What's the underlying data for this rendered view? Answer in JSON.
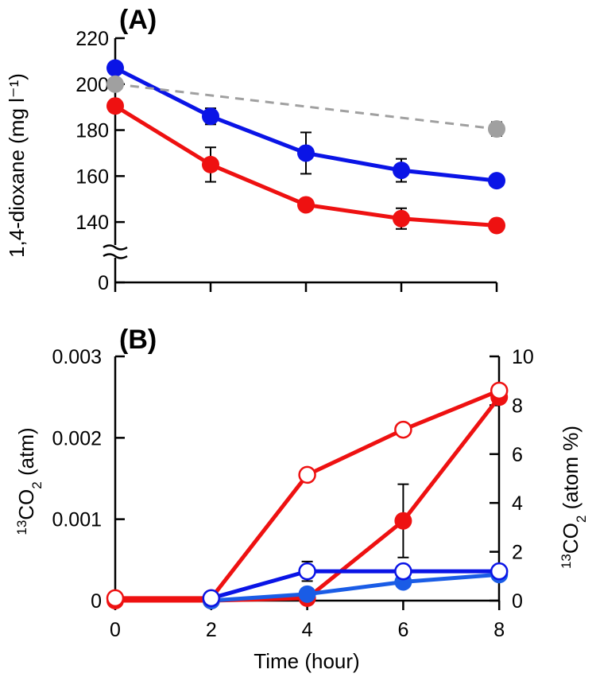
{
  "chart_data": [
    {
      "type": "line",
      "panel_label": "(A)",
      "ylabel": "1,4-dioxane (mg l⁻¹)",
      "xlabel": "",
      "x": [
        0,
        2,
        4,
        6,
        8
      ],
      "xlim": [
        0,
        8
      ],
      "ylim_broken": {
        "lower_tick": 0,
        "upper": [
          130,
          220
        ]
      },
      "yticks": [
        0,
        140,
        160,
        180,
        200,
        220
      ],
      "xticks": [
        0,
        2,
        4,
        6,
        8
      ],
      "axis_break": true,
      "series": [
        {
          "name": "blue",
          "color": "#0a14e6",
          "style": "solid",
          "marker": "filled",
          "x": [
            0,
            2,
            4,
            6,
            8
          ],
          "values": [
            207,
            186,
            170,
            162.5,
            158
          ],
          "error": [
            0,
            3.5,
            9,
            5,
            0
          ]
        },
        {
          "name": "red",
          "color": "#ee1111",
          "style": "solid",
          "marker": "filled",
          "x": [
            0,
            2,
            4,
            6,
            8
          ],
          "values": [
            190.5,
            165,
            147.5,
            141.5,
            138.5
          ],
          "error": [
            0,
            7.5,
            2.5,
            4.5,
            0
          ]
        },
        {
          "name": "gray",
          "color": "#a0a0a0",
          "style": "dashed",
          "marker": "filled",
          "x": [
            0,
            8
          ],
          "values": [
            200,
            180.5
          ],
          "error": [
            0,
            3
          ]
        }
      ]
    },
    {
      "type": "line",
      "panel_label": "(B)",
      "ylabel_left": "CO (atm)",
      "ylabel_left_sup": "13",
      "ylabel_left_sub": "2",
      "ylabel_right": "CO (atom %)",
      "ylabel_right_sup": "13",
      "ylabel_right_sub": "2",
      "xlabel": "Time (hour)",
      "x": [
        0,
        2,
        4,
        6,
        8
      ],
      "xlim": [
        0,
        8
      ],
      "ylim_left": [
        0,
        0.003
      ],
      "ylim_right": [
        0,
        10
      ],
      "yticks_left": [
        "0",
        "0.001",
        "0.002",
        "0.003"
      ],
      "yticks_right": [
        "0",
        "2",
        "4",
        "6",
        "8",
        "10"
      ],
      "xticks": [
        "0",
        "2",
        "4",
        "6",
        "8"
      ],
      "series": [
        {
          "name": "red filled (atm)",
          "axis": "left",
          "color": "#ee1111",
          "marker": "filled",
          "x": [
            0,
            2,
            4,
            6,
            8
          ],
          "values": [
            0,
            0,
            3e-05,
            0.00098,
            0.0025
          ],
          "error": [
            0,
            0,
            0,
            0.00045,
            0
          ]
        },
        {
          "name": "blue filled (atm)",
          "axis": "left",
          "color": "#1a5ce6",
          "marker": "filled",
          "x": [
            2,
            4,
            6,
            8
          ],
          "values": [
            0,
            8e-05,
            0.00023,
            0.00032
          ],
          "error": [
            0,
            0,
            0,
            0
          ]
        },
        {
          "name": "red open (atom %)",
          "axis": "right",
          "color": "#ee1111",
          "marker": "open",
          "x": [
            0,
            2,
            4,
            6,
            8
          ],
          "values": [
            0.1,
            0.1,
            5.15,
            7.0,
            8.6
          ],
          "error": [
            0,
            0,
            0,
            0,
            0
          ]
        },
        {
          "name": "blue open (atom %)",
          "axis": "right",
          "color": "#0a14e6",
          "marker": "open",
          "x": [
            2,
            4,
            6,
            8
          ],
          "values": [
            0.1,
            1.2,
            1.2,
            1.2
          ],
          "error": [
            0,
            0.4,
            0,
            0
          ]
        }
      ]
    }
  ]
}
